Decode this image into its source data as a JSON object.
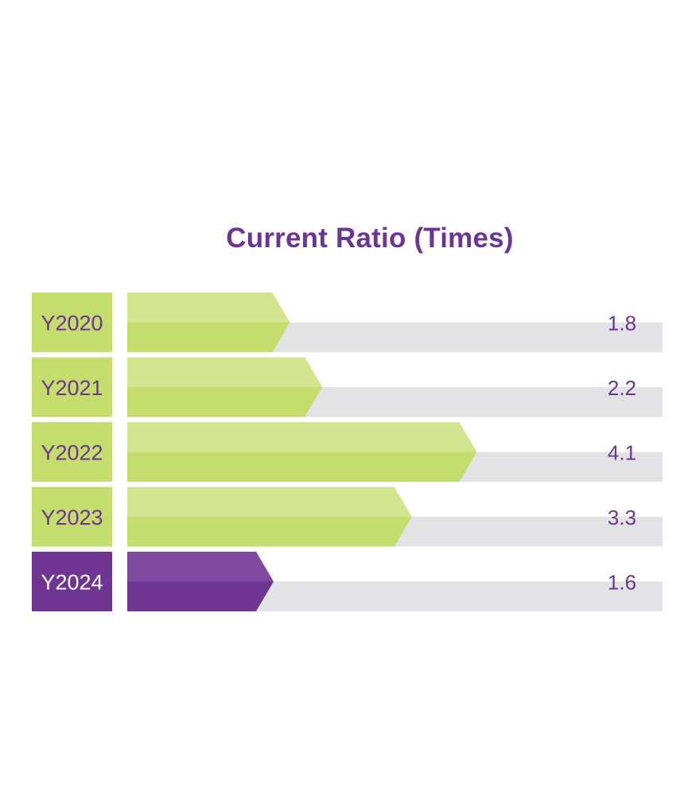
{
  "chart_data": {
    "type": "bar",
    "orientation": "horizontal",
    "title": "Current Ratio (Times)",
    "categories": [
      "Y2020",
      "Y2021",
      "Y2022",
      "Y2023",
      "Y2024"
    ],
    "values": [
      1.8,
      2.2,
      4.1,
      3.3,
      1.6
    ],
    "value_labels": [
      "1.8",
      "2.2",
      "4.1",
      "3.3",
      "1.6"
    ],
    "highlight_category": "Y2024",
    "colors": {
      "normal_bar": "#c5dd6c",
      "normal_bar_light": "#d3e58e",
      "highlight_bar": "#6f3593",
      "highlight_bar_light": "#7f4ba0",
      "track": "#e3e3e5",
      "label_text": "#6b3594",
      "highlight_label_text": "#ffffff"
    }
  }
}
